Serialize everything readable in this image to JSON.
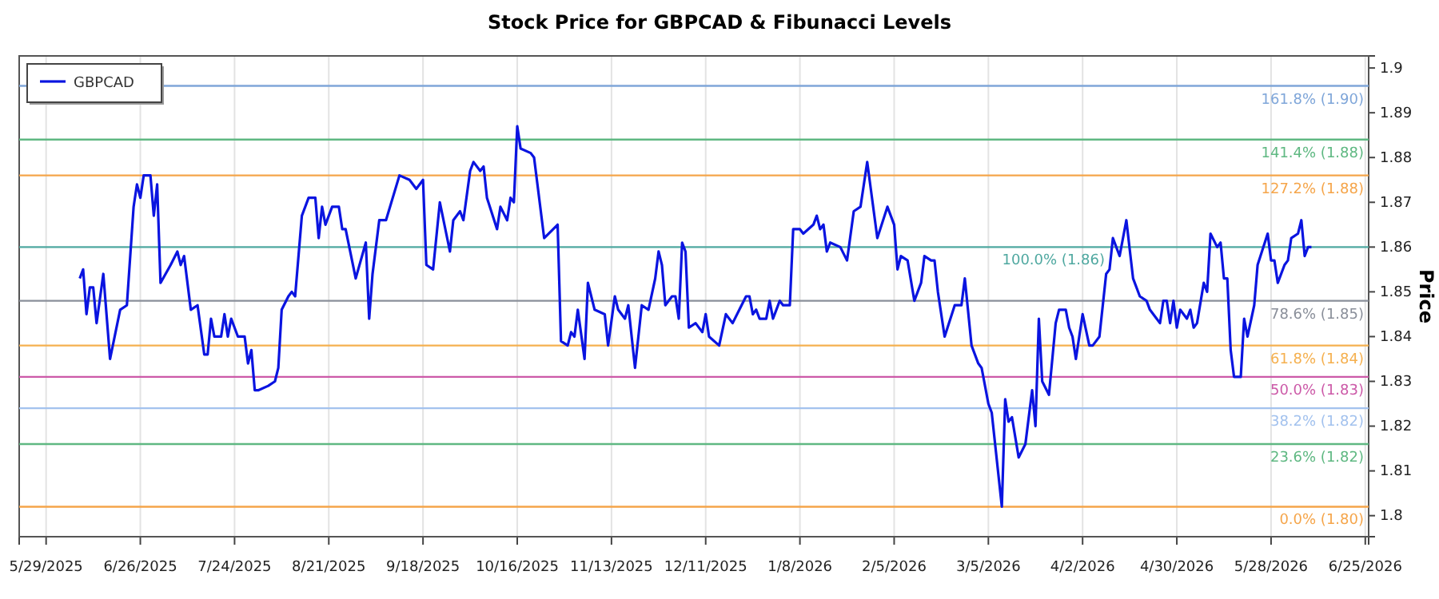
{
  "chart_data": {
    "type": "line",
    "title": "Stock Price for GBPCAD & Fibunacci Levels",
    "ylabel": "Price",
    "grid": "x",
    "legend": "top left",
    "xlim": [
      "2025-05-21",
      "2026-06-26"
    ],
    "xticks": [
      {
        "value": "2025-05-29",
        "label": "5/29/2025"
      },
      {
        "value": "2025-06-26",
        "label": "6/26/2025"
      },
      {
        "value": "2025-07-24",
        "label": "7/24/2025"
      },
      {
        "value": "2025-08-21",
        "label": "8/21/2025"
      },
      {
        "value": "2025-09-18",
        "label": "9/18/2025"
      },
      {
        "value": "2025-10-16",
        "label": "10/16/2025"
      },
      {
        "value": "2025-11-13",
        "label": "11/13/2025"
      },
      {
        "value": "2025-12-11",
        "label": "12/11/2025"
      },
      {
        "value": "2026-01-08",
        "label": "1/8/2026"
      },
      {
        "value": "2026-02-05",
        "label": "2/5/2026"
      },
      {
        "value": "2026-03-05",
        "label": "3/5/2026"
      },
      {
        "value": "2026-04-02",
        "label": "4/2/2026"
      },
      {
        "value": "2026-04-30",
        "label": "4/30/2026"
      },
      {
        "value": "2026-05-28",
        "label": "5/28/2026"
      },
      {
        "value": "2026-06-25",
        "label": "6/25/2026"
      }
    ],
    "ylim": [
      1.7953,
      1.9027
    ],
    "yticks": [
      1.8,
      1.81,
      1.82,
      1.83,
      1.84,
      1.85,
      1.86,
      1.87,
      1.88,
      1.89,
      1.9
    ],
    "ref_lines": [
      {
        "axis": "y",
        "value": 1.896,
        "label": "161.8% (1.90)",
        "color": "#7fa6d9"
      },
      {
        "axis": "y",
        "value": 1.884,
        "label": "141.4% (1.88)",
        "color": "#5fb882"
      },
      {
        "axis": "y",
        "value": 1.876,
        "label": "127.2% (1.88)",
        "color": "#f5a54a"
      },
      {
        "axis": "y",
        "value": 1.86,
        "label": "100.0% (1.86)",
        "color": "#4fa8a0"
      },
      {
        "axis": "y",
        "value": 1.848,
        "label": "78.6% (1.85)",
        "color": "#8a8f9a"
      },
      {
        "axis": "y",
        "value": 1.838,
        "label": "61.8% (1.84)",
        "color": "#f5b04f"
      },
      {
        "axis": "y",
        "value": 1.831,
        "label": "50.0% (1.83)",
        "color": "#cc5aa8"
      },
      {
        "axis": "y",
        "value": 1.824,
        "label": "38.2% (1.82)",
        "color": "#a3c2ee"
      },
      {
        "axis": "y",
        "value": 1.816,
        "label": "23.6% (1.82)",
        "color": "#5fb882"
      },
      {
        "axis": "y",
        "value": 1.802,
        "label": "0.0% (1.80)",
        "color": "#f5a54a"
      }
    ],
    "x": [
      "2025-06-08",
      "2025-06-09",
      "2025-06-10",
      "2025-06-11",
      "2025-06-12",
      "2025-06-13",
      "2025-06-15",
      "2025-06-17",
      "2025-06-20",
      "2025-06-22",
      "2025-06-24",
      "2025-06-25",
      "2025-06-26",
      "2025-06-27",
      "2025-06-29",
      "2025-06-30",
      "2025-07-01",
      "2025-07-02",
      "2025-07-05",
      "2025-07-07",
      "2025-07-08",
      "2025-07-09",
      "2025-07-11",
      "2025-07-13",
      "2025-07-15",
      "2025-07-16",
      "2025-07-17",
      "2025-07-18",
      "2025-07-20",
      "2025-07-21",
      "2025-07-22",
      "2025-07-23",
      "2025-07-25",
      "2025-07-27",
      "2025-07-28",
      "2025-07-29",
      "2025-07-30",
      "2025-07-31",
      "2025-08-03",
      "2025-08-05",
      "2025-08-06",
      "2025-08-07",
      "2025-08-09",
      "2025-08-10",
      "2025-08-11",
      "2025-08-13",
      "2025-08-15",
      "2025-08-17",
      "2025-08-18",
      "2025-08-19",
      "2025-08-20",
      "2025-08-22",
      "2025-08-24",
      "2025-08-25",
      "2025-08-26",
      "2025-08-29",
      "2025-09-01",
      "2025-09-02",
      "2025-09-03",
      "2025-09-05",
      "2025-09-07",
      "2025-09-11",
      "2025-09-14",
      "2025-09-16",
      "2025-09-18",
      "2025-09-19",
      "2025-09-21",
      "2025-09-23",
      "2025-09-26",
      "2025-09-27",
      "2025-09-29",
      "2025-09-30",
      "2025-10-02",
      "2025-10-03",
      "2025-10-05",
      "2025-10-06",
      "2025-10-07",
      "2025-10-10",
      "2025-10-11",
      "2025-10-13",
      "2025-10-14",
      "2025-10-15",
      "2025-10-16",
      "2025-10-17",
      "2025-10-20",
      "2025-10-21",
      "2025-10-24",
      "2025-10-28",
      "2025-10-29",
      "2025-10-31",
      "2025-11-01",
      "2025-11-02",
      "2025-11-03",
      "2025-11-05",
      "2025-11-06",
      "2025-11-08",
      "2025-11-11",
      "2025-11-12",
      "2025-11-14",
      "2025-11-15",
      "2025-11-17",
      "2025-11-18",
      "2025-11-20",
      "2025-11-22",
      "2025-11-24",
      "2025-11-26",
      "2025-11-27",
      "2025-11-28",
      "2025-11-29",
      "2025-12-01",
      "2025-12-02",
      "2025-12-03",
      "2025-12-04",
      "2025-12-05",
      "2025-12-06",
      "2025-12-08",
      "2025-12-10",
      "2025-12-11",
      "2025-12-12",
      "2025-12-15",
      "2025-12-17",
      "2025-12-19",
      "2025-12-21",
      "2025-12-23",
      "2025-12-24",
      "2025-12-25",
      "2025-12-26",
      "2025-12-27",
      "2025-12-29",
      "2025-12-30",
      "2025-12-31",
      "2026-01-02",
      "2026-01-03",
      "2026-01-05",
      "2026-01-06",
      "2026-01-08",
      "2026-01-09",
      "2026-01-12",
      "2026-01-13",
      "2026-01-14",
      "2026-01-15",
      "2026-01-16",
      "2026-01-17",
      "2026-01-20",
      "2026-01-22",
      "2026-01-24",
      "2026-01-26",
      "2026-01-28",
      "2026-01-31",
      "2026-02-03",
      "2026-02-05",
      "2026-02-06",
      "2026-02-07",
      "2026-02-09",
      "2026-02-11",
      "2026-02-13",
      "2026-02-14",
      "2026-02-16",
      "2026-02-17",
      "2026-02-18",
      "2026-02-20",
      "2026-02-23",
      "2026-02-24",
      "2026-02-25",
      "2026-02-26",
      "2026-02-28",
      "2026-03-02",
      "2026-03-03",
      "2026-03-05",
      "2026-03-06",
      "2026-03-09",
      "2026-03-10",
      "2026-03-11",
      "2026-03-12",
      "2026-03-14",
      "2026-03-16",
      "2026-03-18",
      "2026-03-19",
      "2026-03-20",
      "2026-03-21",
      "2026-03-23",
      "2026-03-25",
      "2026-03-26",
      "2026-03-27",
      "2026-03-28",
      "2026-03-29",
      "2026-03-30",
      "2026-03-31",
      "2026-04-02",
      "2026-04-04",
      "2026-04-05",
      "2026-04-07",
      "2026-04-09",
      "2026-04-10",
      "2026-04-11",
      "2026-04-13",
      "2026-04-15",
      "2026-04-17",
      "2026-04-19",
      "2026-04-21",
      "2026-04-22",
      "2026-04-24",
      "2026-04-25",
      "2026-04-26",
      "2026-04-27",
      "2026-04-28",
      "2026-04-29",
      "2026-04-30",
      "2026-05-01",
      "2026-05-03",
      "2026-05-04",
      "2026-05-05",
      "2026-05-06",
      "2026-05-08",
      "2026-05-09",
      "2026-05-10",
      "2026-05-12",
      "2026-05-13",
      "2026-05-14",
      "2026-05-15",
      "2026-05-16",
      "2026-05-17",
      "2026-05-19",
      "2026-05-20",
      "2026-05-21",
      "2026-05-23",
      "2026-05-24",
      "2026-05-27",
      "2026-05-28",
      "2026-05-29",
      "2026-05-30",
      "2026-06-01",
      "2026-06-02",
      "2026-06-03",
      "2026-06-05",
      "2026-06-06",
      "2026-06-07",
      "2026-06-08",
      "2026-06-09"
    ],
    "series": [
      {
        "name": "GBPCAD",
        "color": "#0a14e0",
        "values": [
          1.853,
          1.855,
          1.845,
          1.851,
          1.851,
          1.843,
          1.854,
          1.835,
          1.846,
          1.847,
          1.869,
          1.874,
          1.871,
          1.876,
          1.876,
          1.867,
          1.874,
          1.852,
          1.856,
          1.859,
          1.856,
          1.858,
          1.846,
          1.847,
          1.836,
          1.836,
          1.844,
          1.84,
          1.84,
          1.845,
          1.84,
          1.844,
          1.84,
          1.84,
          1.834,
          1.837,
          1.828,
          1.828,
          1.829,
          1.83,
          1.833,
          1.846,
          1.849,
          1.85,
          1.849,
          1.867,
          1.871,
          1.871,
          1.862,
          1.869,
          1.865,
          1.869,
          1.869,
          1.864,
          1.864,
          1.853,
          1.861,
          1.844,
          1.854,
          1.866,
          1.866,
          1.876,
          1.875,
          1.873,
          1.875,
          1.856,
          1.855,
          1.87,
          1.859,
          1.866,
          1.868,
          1.866,
          1.877,
          1.879,
          1.877,
          1.878,
          1.871,
          1.864,
          1.869,
          1.866,
          1.871,
          1.87,
          1.887,
          1.882,
          1.881,
          1.88,
          1.862,
          1.865,
          1.839,
          1.838,
          1.841,
          1.84,
          1.846,
          1.835,
          1.852,
          1.846,
          1.845,
          1.838,
          1.849,
          1.846,
          1.844,
          1.847,
          1.833,
          1.847,
          1.846,
          1.853,
          1.859,
          1.856,
          1.847,
          1.849,
          1.849,
          1.844,
          1.861,
          1.859,
          1.842,
          1.843,
          1.841,
          1.845,
          1.84,
          1.838,
          1.845,
          1.843,
          1.846,
          1.849,
          1.849,
          1.845,
          1.846,
          1.844,
          1.844,
          1.848,
          1.844,
          1.848,
          1.847,
          1.847,
          1.864,
          1.864,
          1.863,
          1.865,
          1.867,
          1.864,
          1.865,
          1.859,
          1.861,
          1.86,
          1.857,
          1.868,
          1.869,
          1.879,
          1.862,
          1.869,
          1.865,
          1.855,
          1.858,
          1.857,
          1.848,
          1.852,
          1.858,
          1.857,
          1.857,
          1.85,
          1.84,
          1.847,
          1.847,
          1.847,
          1.853,
          1.838,
          1.834,
          1.833,
          1.825,
          1.823,
          1.802,
          1.826,
          1.821,
          1.822,
          1.813,
          1.816,
          1.828,
          1.82,
          1.844,
          1.83,
          1.827,
          1.843,
          1.846,
          1.846,
          1.846,
          1.842,
          1.84,
          1.835,
          1.845,
          1.838,
          1.838,
          1.84,
          1.854,
          1.855,
          1.862,
          1.858,
          1.866,
          1.853,
          1.849,
          1.848,
          1.846,
          1.844,
          1.843,
          1.848,
          1.848,
          1.843,
          1.848,
          1.842,
          1.846,
          1.844,
          1.846,
          1.842,
          1.843,
          1.852,
          1.85,
          1.863,
          1.86,
          1.861,
          1.853,
          1.853,
          1.837,
          1.831,
          1.831,
          1.844,
          1.84,
          1.847,
          1.856,
          1.863,
          1.857,
          1.857,
          1.852,
          1.856,
          1.857,
          1.862,
          1.863,
          1.866,
          1.858,
          1.86,
          1.86
        ]
      }
    ]
  }
}
